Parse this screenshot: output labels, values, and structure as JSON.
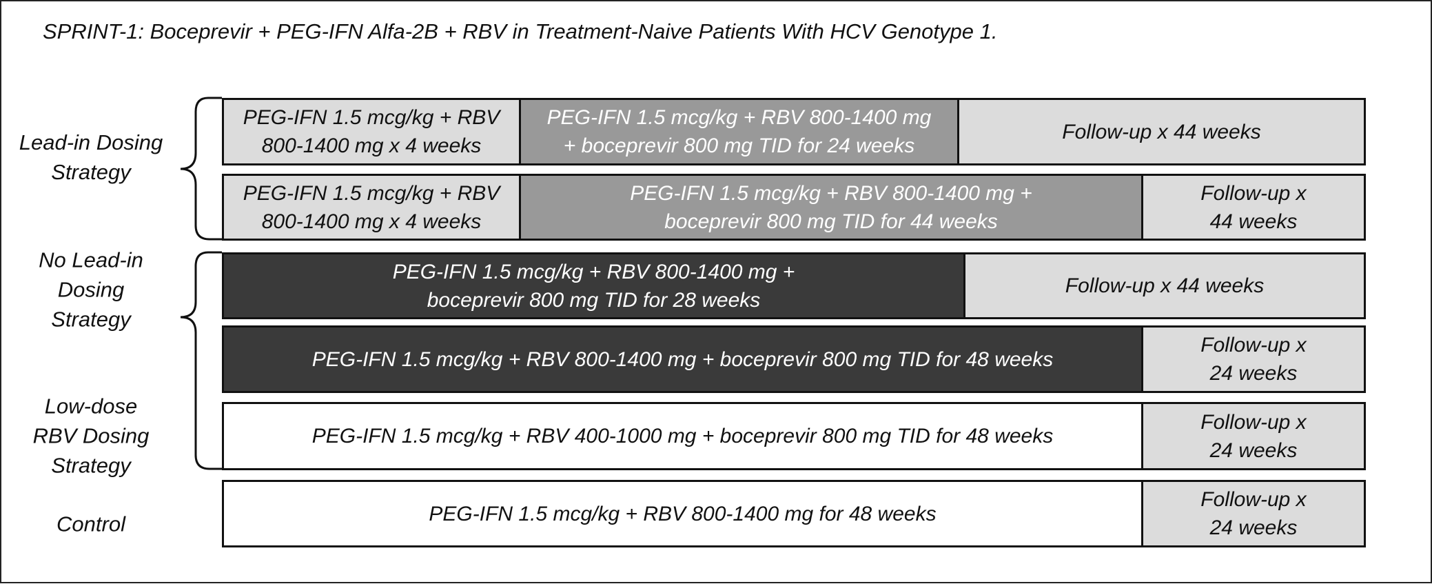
{
  "title": "SPRINT-1: Boceprevir + PEG-IFN Alfa-2B + RBV in Treatment-Naive Patients With HCV Genotype 1.",
  "groups": [
    {
      "lines": [
        "Lead-in Dosing",
        "Strategy"
      ]
    },
    {
      "lines": [
        "No Lead-in",
        "Dosing",
        "Strategy"
      ]
    },
    {
      "lines": [
        "Low-dose",
        "RBV Dosing",
        "Strategy"
      ]
    },
    {
      "lines": [
        "Control"
      ]
    }
  ],
  "rows": [
    {
      "segments": [
        {
          "lines": [
            "PEG-IFN 1.5 mcg/kg + RBV",
            "800-1400 mg x 4 weeks"
          ]
        },
        {
          "lines": [
            "PEG-IFN 1.5 mcg/kg + RBV 800-1400 mg",
            "+ boceprevir 800 mg TID for 24 weeks"
          ]
        },
        {
          "lines": [
            "Follow-up x 44 weeks"
          ]
        }
      ]
    },
    {
      "segments": [
        {
          "lines": [
            "PEG-IFN 1.5 mcg/kg + RBV",
            "800-1400 mg x 4 weeks"
          ]
        },
        {
          "lines": [
            "PEG-IFN 1.5 mcg/kg + RBV 800-1400 mg +",
            "boceprevir 800 mg TID for 44 weeks"
          ]
        },
        {
          "lines": [
            "Follow-up x",
            "44 weeks"
          ]
        }
      ]
    },
    {
      "segments": [
        {
          "lines": [
            "PEG-IFN 1.5 mcg/kg + RBV 800-1400 mg +",
            "boceprevir 800 mg TID for 28 weeks"
          ]
        },
        {
          "lines": [
            "Follow-up x 44 weeks"
          ]
        }
      ]
    },
    {
      "segments": [
        {
          "lines": [
            "PEG-IFN 1.5 mcg/kg + RBV 800-1400 mg + boceprevir 800 mg TID for 48 weeks"
          ]
        },
        {
          "lines": [
            "Follow-up x",
            "24 weeks"
          ]
        }
      ]
    },
    {
      "segments": [
        {
          "lines": [
            "PEG-IFN 1.5 mcg/kg + RBV 400-1000 mg + boceprevir 800 mg TID for 48 weeks"
          ]
        },
        {
          "lines": [
            "Follow-up x",
            "24 weeks"
          ]
        }
      ]
    },
    {
      "segments": [
        {
          "lines": [
            "PEG-IFN 1.5 mcg/kg + RBV 800-1400 mg for 48 weeks"
          ]
        },
        {
          "lines": [
            "Follow-up x",
            "24 weeks"
          ]
        }
      ]
    }
  ]
}
